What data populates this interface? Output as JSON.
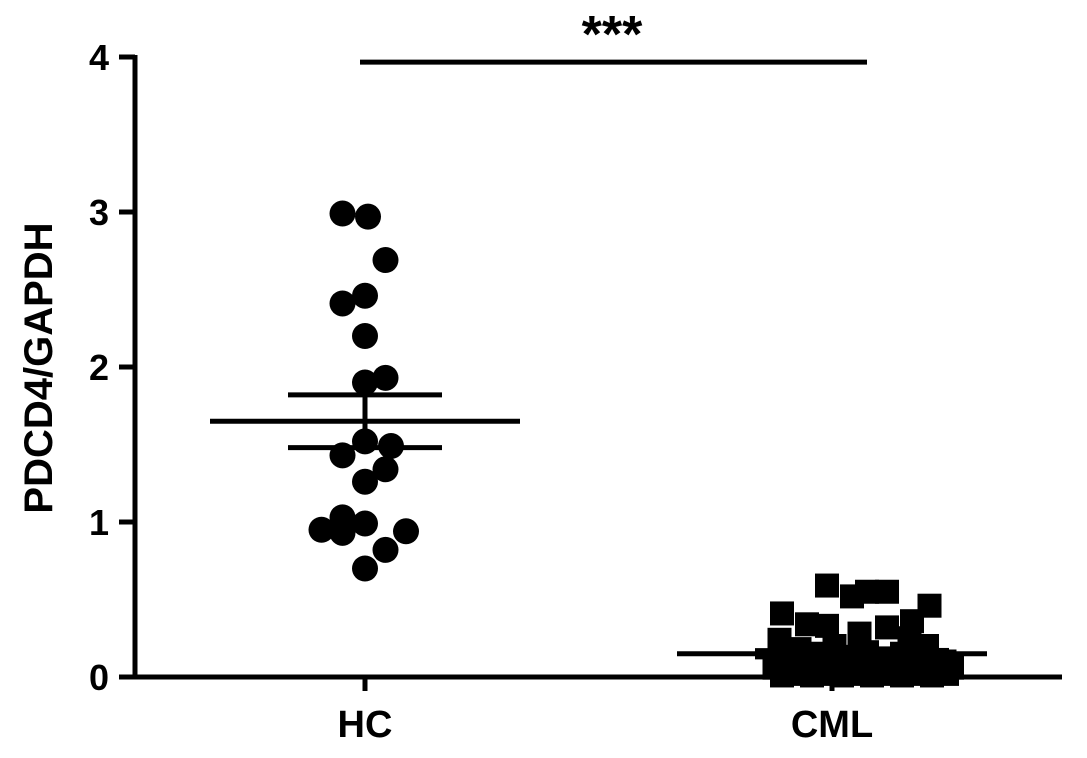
{
  "chart_data": {
    "type": "scatter",
    "title": "",
    "xlabel": "",
    "ylabel": "PDCD4/GAPDH",
    "ylim": [
      0,
      4
    ],
    "yticks": [
      0,
      1,
      2,
      3,
      4
    ],
    "categories": [
      "HC",
      "CML"
    ],
    "grid": false,
    "legend": "none",
    "significance": {
      "label": "***",
      "between": [
        "HC",
        "CML"
      ],
      "y": 3.98
    },
    "colors": {
      "marker": "#000000",
      "axis": "#000000"
    },
    "series": [
      {
        "category": "HC",
        "marker": "circle",
        "mean": 1.65,
        "sem": 0.17,
        "points": [
          {
            "offset": -0.45,
            "y": 2.99
          },
          {
            "offset": 0.06,
            "y": 2.97
          },
          {
            "offset": 0.41,
            "y": 2.69
          },
          {
            "offset": -0.45,
            "y": 2.41
          },
          {
            "offset": 0.0,
            "y": 2.46
          },
          {
            "offset": 0.0,
            "y": 2.2
          },
          {
            "offset": 0.0,
            "y": 1.9
          },
          {
            "offset": 0.41,
            "y": 1.93
          },
          {
            "offset": 0.0,
            "y": 1.52
          },
          {
            "offset": -0.45,
            "y": 1.43
          },
          {
            "offset": 0.52,
            "y": 1.49
          },
          {
            "offset": 0.41,
            "y": 1.34
          },
          {
            "offset": 0.0,
            "y": 1.26
          },
          {
            "offset": -0.45,
            "y": 1.03
          },
          {
            "offset": 0.0,
            "y": 0.99
          },
          {
            "offset": -0.87,
            "y": 0.95
          },
          {
            "offset": -0.45,
            "y": 0.93
          },
          {
            "offset": 0.82,
            "y": 0.94
          },
          {
            "offset": 0.41,
            "y": 0.82
          },
          {
            "offset": 0.0,
            "y": 0.7
          }
        ]
      },
      {
        "category": "CML",
        "marker": "square",
        "mean": 0.15,
        "sem": 0.02,
        "points": [
          {
            "offset": -1.0,
            "y": 0.41
          },
          {
            "offset": -0.5,
            "y": 0.34
          },
          {
            "offset": -0.1,
            "y": 0.59
          },
          {
            "offset": 0.4,
            "y": 0.52
          },
          {
            "offset": 0.7,
            "y": 0.55
          },
          {
            "offset": 1.1,
            "y": 0.55
          },
          {
            "offset": 1.6,
            "y": 0.36
          },
          {
            "offset": 1.95,
            "y": 0.46
          },
          {
            "offset": -1.05,
            "y": 0.24
          },
          {
            "offset": -0.1,
            "y": 0.33
          },
          {
            "offset": 0.55,
            "y": 0.28
          },
          {
            "offset": 1.1,
            "y": 0.32
          },
          {
            "offset": 1.55,
            "y": 0.25
          },
          {
            "offset": 1.9,
            "y": 0.2
          },
          {
            "offset": -1.0,
            "y": 0.12
          },
          {
            "offset": -0.65,
            "y": 0.18
          },
          {
            "offset": -0.3,
            "y": 0.15
          },
          {
            "offset": 0.05,
            "y": 0.2
          },
          {
            "offset": 0.35,
            "y": 0.13
          },
          {
            "offset": 0.7,
            "y": 0.16
          },
          {
            "offset": 1.05,
            "y": 0.12
          },
          {
            "offset": 1.4,
            "y": 0.15
          },
          {
            "offset": 1.75,
            "y": 0.13
          },
          {
            "offset": 2.1,
            "y": 0.11
          },
          {
            "offset": -1.15,
            "y": 0.06
          },
          {
            "offset": -0.85,
            "y": 0.05
          },
          {
            "offset": -0.55,
            "y": 0.07
          },
          {
            "offset": -0.25,
            "y": 0.04
          },
          {
            "offset": 0.05,
            "y": 0.06
          },
          {
            "offset": 0.35,
            "y": 0.05
          },
          {
            "offset": 0.65,
            "y": 0.07
          },
          {
            "offset": 0.95,
            "y": 0.04
          },
          {
            "offset": 1.25,
            "y": 0.06
          },
          {
            "offset": 1.55,
            "y": 0.05
          },
          {
            "offset": 1.85,
            "y": 0.07
          },
          {
            "offset": 2.15,
            "y": 0.04
          },
          {
            "offset": 2.4,
            "y": 0.06
          },
          {
            "offset": -1.0,
            "y": 0.01
          },
          {
            "offset": -0.7,
            "y": 0.02
          },
          {
            "offset": -0.4,
            "y": 0.01
          },
          {
            "offset": -0.1,
            "y": 0.02
          },
          {
            "offset": 0.2,
            "y": 0.01
          },
          {
            "offset": 0.5,
            "y": 0.02
          },
          {
            "offset": 0.8,
            "y": 0.01
          },
          {
            "offset": 1.1,
            "y": 0.02
          },
          {
            "offset": 1.4,
            "y": 0.01
          },
          {
            "offset": 1.7,
            "y": 0.02
          },
          {
            "offset": 2.0,
            "y": 0.01
          },
          {
            "offset": 2.3,
            "y": 0.02
          },
          {
            "offset": -0.55,
            "y": 0.1
          },
          {
            "offset": 0.25,
            "y": 0.09
          },
          {
            "offset": 0.9,
            "y": 0.09
          },
          {
            "offset": 1.65,
            "y": 0.09
          },
          {
            "offset": 2.25,
            "y": 0.1
          }
        ]
      }
    ]
  }
}
